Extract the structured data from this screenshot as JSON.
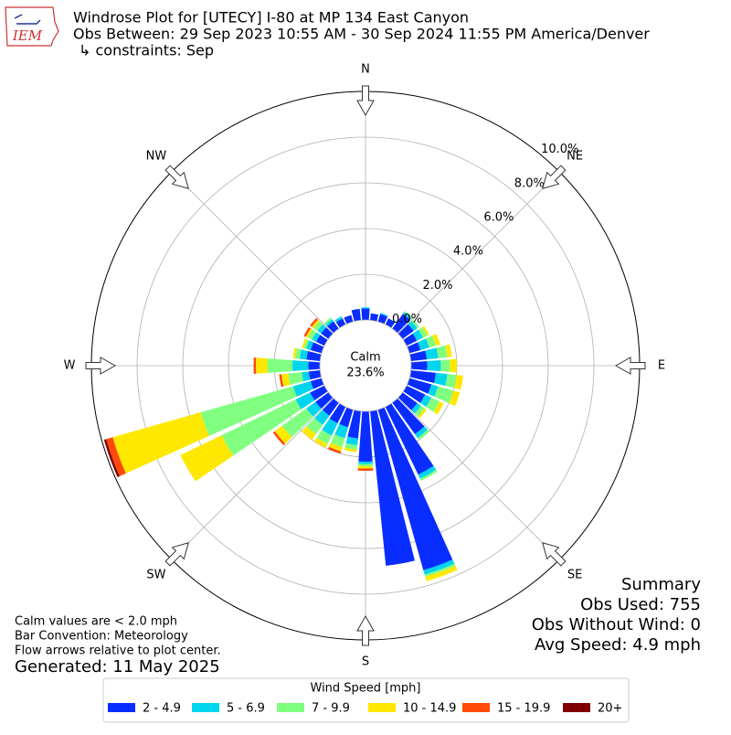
{
  "chart_data": {
    "type": "windrose",
    "title_lines": [
      "Windrose Plot for [UTECY] I-80 at MP 134 East Canyon",
      "Obs Between: 29 Sep 2023 10:55 AM - 30 Sep 2024 11:55 PM America/Denver",
      "↳ constraints: Sep"
    ],
    "logo_text": "IEM",
    "x": [
      0,
      10,
      20,
      30,
      40,
      50,
      60,
      70,
      80,
      90,
      100,
      110,
      120,
      130,
      140,
      150,
      160,
      170,
      180,
      190,
      200,
      210,
      220,
      230,
      240,
      250,
      260,
      270,
      280,
      290,
      300,
      310,
      320,
      330,
      340,
      350
    ],
    "compass": [
      {
        "value": 0,
        "label": "N"
      },
      {
        "value": 45,
        "label": "NE"
      },
      {
        "value": 90,
        "label": "E"
      },
      {
        "value": 135,
        "label": "SE"
      },
      {
        "value": 180,
        "label": "S"
      },
      {
        "value": 225,
        "label": "SW"
      },
      {
        "value": 270,
        "label": "W"
      },
      {
        "value": 315,
        "label": "NW"
      }
    ],
    "rlim": [
      0,
      10
    ],
    "rticks": [
      {
        "value": 0,
        "label": "0.0%"
      },
      {
        "value": 2,
        "label": "2.0%"
      },
      {
        "value": 4,
        "label": "4.0%"
      },
      {
        "value": 6,
        "label": "6.0%"
      },
      {
        "value": 8,
        "label": "8.0%"
      },
      {
        "value": 10,
        "label": "10.0%"
      }
    ],
    "grid": true,
    "calm_label": "Calm",
    "calm_value": 23.6,
    "calm_value_label": "23.6%",
    "legend_title": "Wind Speed [mph]",
    "series": [
      {
        "name": "2 - 4.9",
        "color": "#0a2dff",
        "values": [
          0.5,
          0.3,
          0.35,
          0.3,
          0.8,
          0.6,
          0.5,
          0.5,
          0.7,
          0.7,
          1.1,
          1.0,
          0.9,
          0.8,
          1.7,
          3.3,
          7.3,
          6.8,
          2.2,
          1.2,
          0.8,
          0.8,
          0.7,
          0.7,
          0.7,
          0.5,
          0.5,
          0.5,
          0.6,
          0.5,
          0.4,
          0.4,
          0.4,
          0.3,
          0.3,
          0.5
        ]
      },
      {
        "name": "5 - 6.9",
        "color": "#00d5ef",
        "values": [
          0.05,
          0,
          0.05,
          0,
          0.1,
          0.2,
          0.3,
          0.4,
          0.5,
          0.6,
          0.5,
          0.3,
          0.3,
          0.2,
          0.2,
          0.2,
          0.2,
          0,
          0.1,
          0.3,
          0.5,
          0.6,
          0.5,
          0.5,
          0.7,
          0.8,
          0.3,
          0.7,
          0.3,
          0.2,
          0.2,
          0.2,
          0.1,
          0.1,
          0,
          0
        ]
      },
      {
        "name": "7 - 9.9",
        "color": "#80ff80",
        "values": [
          0,
          0,
          0,
          0,
          0.05,
          0.1,
          0.2,
          0.3,
          0.4,
          0.4,
          0.4,
          0.7,
          0.4,
          0.2,
          0.1,
          0.1,
          0.1,
          0,
          0.1,
          0.2,
          0.4,
          0.4,
          0.5,
          1.3,
          3.6,
          4.2,
          0.6,
          1.1,
          0.2,
          0.1,
          0.2,
          0.2,
          0.1,
          0,
          0,
          0
        ]
      },
      {
        "name": "10 - 14.9",
        "color": "#ffe800",
        "values": [
          0,
          0,
          0,
          0,
          0,
          0,
          0.1,
          0.2,
          0.2,
          0.3,
          0.3,
          0.3,
          0.2,
          0.1,
          0,
          0,
          0.2,
          0,
          0.1,
          0.1,
          0.2,
          0.2,
          0.3,
          0.4,
          2.0,
          4.0,
          0.3,
          0.5,
          0.1,
          0.1,
          0.1,
          0.1,
          0,
          0,
          0,
          0
        ]
      },
      {
        "name": "15 - 19.9",
        "color": "#ff4a0a",
        "values": [
          0,
          0,
          0,
          0,
          0,
          0,
          0,
          0,
          0,
          0,
          0,
          0,
          0,
          0,
          0,
          0,
          0,
          0,
          0.1,
          0,
          0.1,
          0,
          0,
          0.1,
          0,
          0.3,
          0.1,
          0.1,
          0,
          0,
          0.1,
          0.1,
          0,
          0,
          0,
          0
        ]
      },
      {
        "name": "20+",
        "color": "#800000",
        "values": [
          0,
          0,
          0,
          0,
          0,
          0,
          0,
          0,
          0,
          0,
          0,
          0,
          0,
          0,
          0,
          0,
          0,
          0,
          0,
          0,
          0,
          0,
          0,
          0,
          0,
          0.1,
          0,
          0,
          0,
          0,
          0,
          0,
          0,
          0,
          0,
          0
        ]
      }
    ],
    "notes": [
      "Calm values are < 2.0 mph",
      "Bar Convention: Meteorology",
      "Flow arrows relative to plot center."
    ],
    "generated": "Generated: 11 May 2025",
    "summary": [
      "Summary",
      "Obs Used: 755",
      "Obs Without Wind: 0",
      "Avg Speed: 4.9 mph"
    ]
  }
}
